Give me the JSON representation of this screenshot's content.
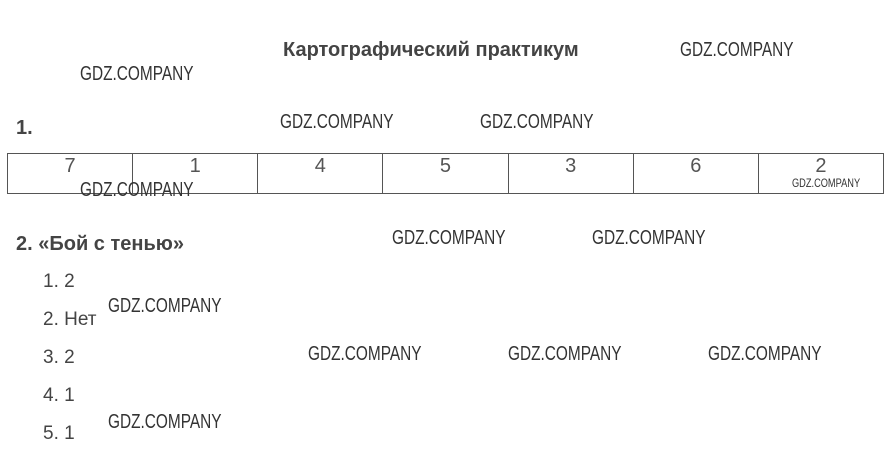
{
  "title": "Картографический практикум",
  "section1": {
    "label": "1.",
    "table_row": [
      "7",
      "1",
      "4",
      "5",
      "3",
      "6",
      "2"
    ]
  },
  "section2": {
    "label": "2. «Бой с тенью»",
    "answers": [
      "1. 2",
      "2. Нет",
      "3. 2",
      "4. 1",
      "5. 1"
    ]
  },
  "watermark": "GDZ.COMPANY"
}
